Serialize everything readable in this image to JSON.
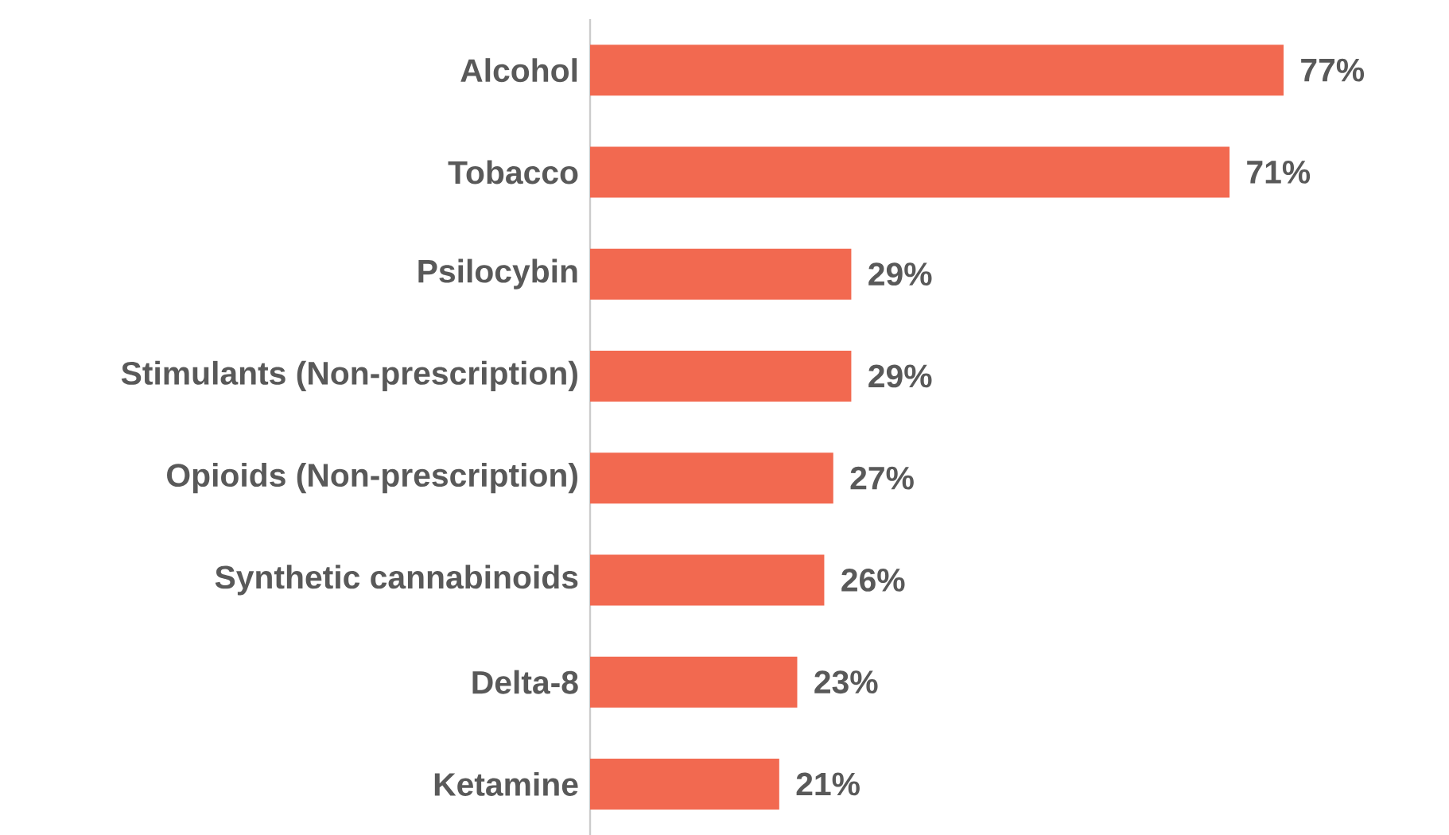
{
  "chart_data": {
    "type": "bar",
    "orientation": "horizontal",
    "categories": [
      "Alcohol",
      "Tobacco",
      "Psilocybin",
      "Stimulants (Non-prescription)",
      "Opioids (Non-prescription)",
      "Synthetic cannabinoids",
      "Delta-8",
      "Ketamine"
    ],
    "values": [
      77,
      71,
      29,
      29,
      27,
      26,
      23,
      21
    ],
    "value_labels": [
      "77%",
      "71%",
      "29%",
      "29%",
      "27%",
      "26%",
      "23%",
      "21%"
    ],
    "color": "#f26950",
    "tick_labels": "y"
  }
}
